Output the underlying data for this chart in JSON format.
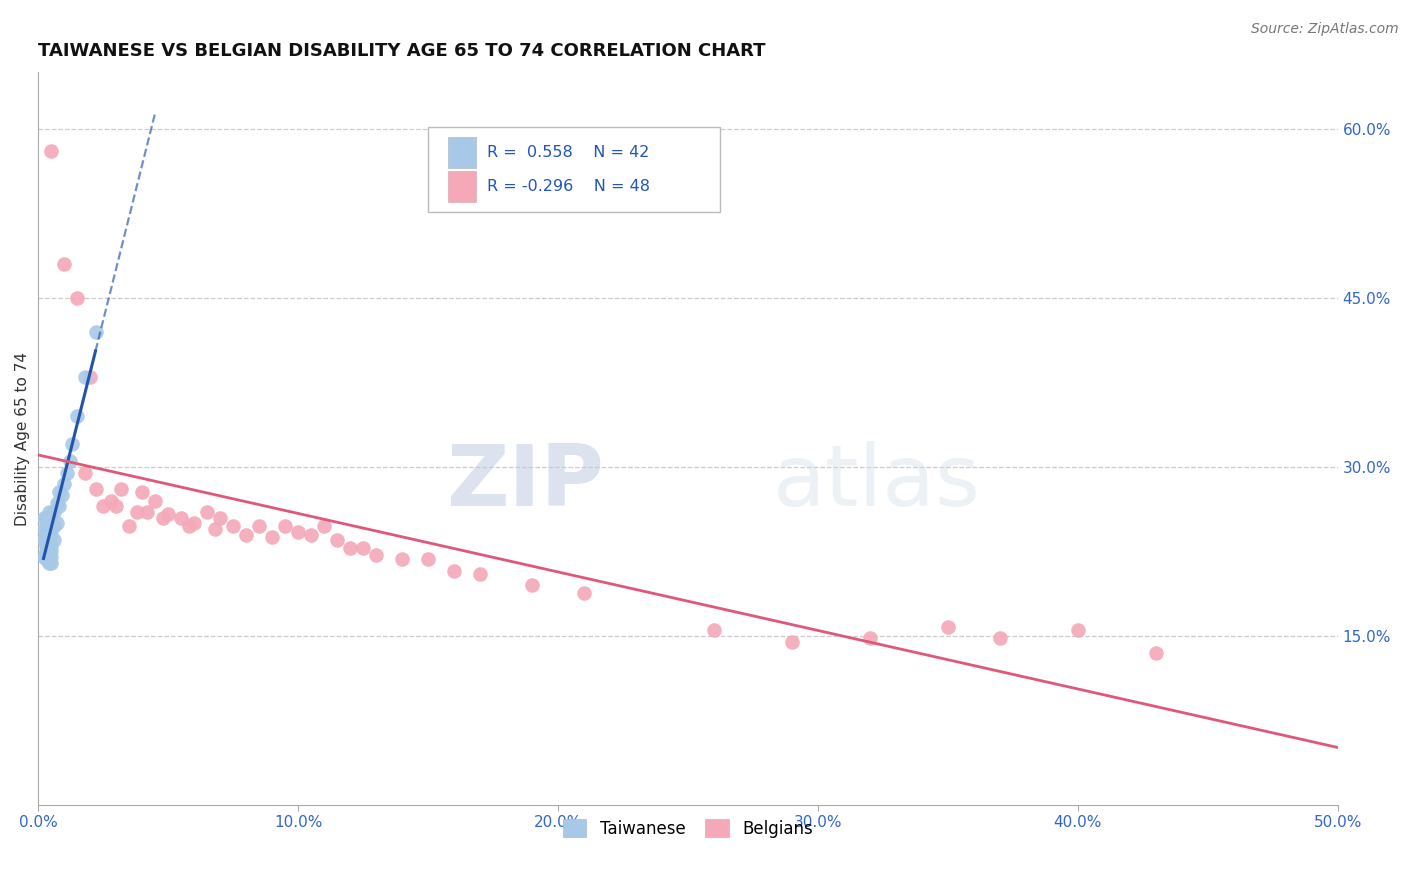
{
  "title": "TAIWANESE VS BELGIAN DISABILITY AGE 65 TO 74 CORRELATION CHART",
  "source": "Source: ZipAtlas.com",
  "ylabel_label": "Disability Age 65 to 74",
  "xlim": [
    0.0,
    0.5
  ],
  "ylim": [
    0.0,
    0.65
  ],
  "x_ticks": [
    0.0,
    0.1,
    0.2,
    0.3,
    0.4,
    0.5
  ],
  "x_tick_labels": [
    "0.0%",
    "10.0%",
    "20.0%",
    "30.0%",
    "40.0%",
    "50.0%"
  ],
  "y_ticks": [
    0.15,
    0.3,
    0.45,
    0.6
  ],
  "y_tick_labels_right": [
    "15.0%",
    "30.0%",
    "45.0%",
    "60.0%"
  ],
  "grid_color": "#cccccc",
  "background_color": "#ffffff",
  "taiwanese_color": "#a8c8e8",
  "belgian_color": "#f4a8b8",
  "taiwanese_line_color": "#2255aa",
  "belgian_line_color": "#e05878",
  "taiwanese_R": 0.558,
  "taiwanese_N": 42,
  "belgian_R": -0.296,
  "belgian_N": 48,
  "watermark_zip": "ZIP",
  "watermark_atlas": "atlas",
  "taiwanese_x": [
    0.002,
    0.002,
    0.002,
    0.002,
    0.003,
    0.003,
    0.003,
    0.003,
    0.003,
    0.003,
    0.003,
    0.004,
    0.004,
    0.004,
    0.004,
    0.004,
    0.004,
    0.004,
    0.004,
    0.004,
    0.005,
    0.005,
    0.005,
    0.005,
    0.005,
    0.005,
    0.005,
    0.006,
    0.006,
    0.006,
    0.007,
    0.007,
    0.008,
    0.008,
    0.009,
    0.01,
    0.011,
    0.012,
    0.013,
    0.015,
    0.018,
    0.022
  ],
  "taiwanese_y": [
    0.22,
    0.235,
    0.245,
    0.255,
    0.218,
    0.225,
    0.23,
    0.235,
    0.24,
    0.245,
    0.255,
    0.215,
    0.22,
    0.225,
    0.23,
    0.235,
    0.24,
    0.245,
    0.25,
    0.26,
    0.215,
    0.22,
    0.225,
    0.23,
    0.24,
    0.248,
    0.258,
    0.235,
    0.248,
    0.26,
    0.25,
    0.268,
    0.265,
    0.278,
    0.275,
    0.285,
    0.295,
    0.305,
    0.32,
    0.345,
    0.38,
    0.42
  ],
  "belgian_x": [
    0.005,
    0.01,
    0.015,
    0.018,
    0.02,
    0.022,
    0.025,
    0.028,
    0.03,
    0.032,
    0.035,
    0.038,
    0.04,
    0.042,
    0.045,
    0.048,
    0.05,
    0.055,
    0.058,
    0.06,
    0.065,
    0.068,
    0.07,
    0.075,
    0.08,
    0.085,
    0.09,
    0.095,
    0.1,
    0.105,
    0.11,
    0.115,
    0.12,
    0.125,
    0.13,
    0.14,
    0.15,
    0.16,
    0.17,
    0.19,
    0.21,
    0.26,
    0.29,
    0.32,
    0.35,
    0.37,
    0.4,
    0.43
  ],
  "belgian_y": [
    0.58,
    0.48,
    0.45,
    0.295,
    0.38,
    0.28,
    0.265,
    0.27,
    0.265,
    0.28,
    0.248,
    0.26,
    0.278,
    0.26,
    0.27,
    0.255,
    0.258,
    0.255,
    0.248,
    0.25,
    0.26,
    0.245,
    0.255,
    0.248,
    0.24,
    0.248,
    0.238,
    0.248,
    0.242,
    0.24,
    0.248,
    0.235,
    0.228,
    0.228,
    0.222,
    0.218,
    0.218,
    0.208,
    0.205,
    0.195,
    0.188,
    0.155,
    0.145,
    0.148,
    0.158,
    0.148,
    0.155,
    0.135
  ],
  "tw_line_x_start": 0.001,
  "tw_line_x_solid_start": 0.002,
  "tw_line_x_solid_end": 0.022,
  "tw_line_x_dash_end": 0.045,
  "be_line_x_start": 0.0,
  "be_line_x_end": 0.5
}
